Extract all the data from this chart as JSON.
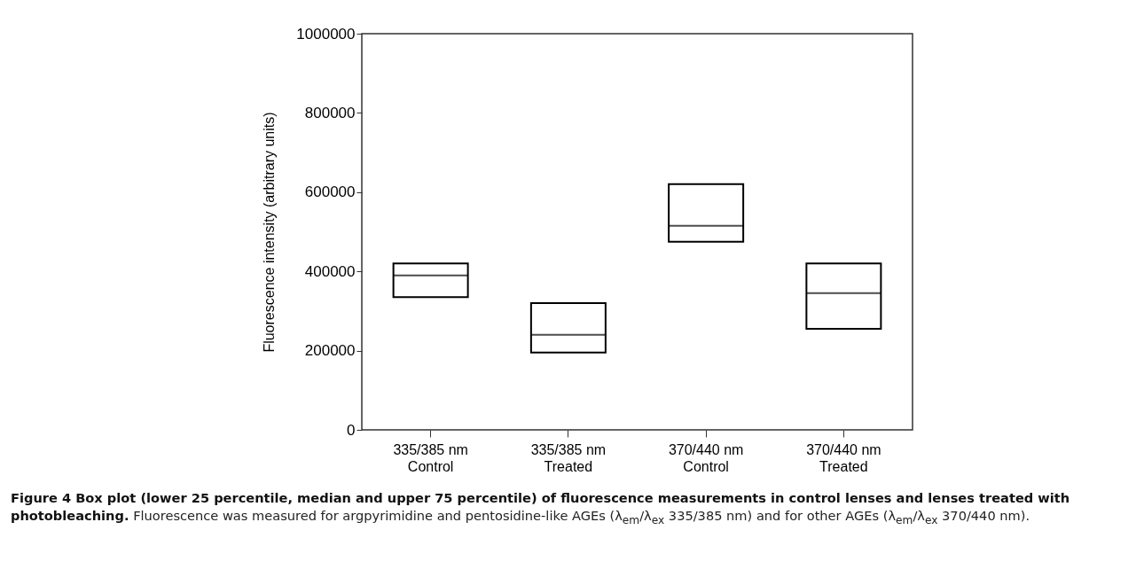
{
  "chart_data": {
    "type": "box",
    "title": "Figure 4 Box plot (lower 25 percentile, median and upper 75 percentile) of fluorescence measurements in control lenses and lenses treated with photobleaching.",
    "annotations": [
      "Fluorescence was measured for argpyrimidine and pentosidine-like AGEs (λ$_{em}$/λ$_{ex}$ 335/385 nm) and for other AGEs (λ$_{em}$/λ$_{ex}$ 370/440 nm)."
    ],
    "ylabel": "Fluorescence intensity (arbitrary units)",
    "categories": [
      "335/385 nm\nControl",
      "335/385 nm\nTreated",
      "370/440 nm\nControl",
      "370/440 nm\nTreated"
    ],
    "boxes": [
      {
        "low": 335000,
        "q1": 335000,
        "median": 390000,
        "q3": 420000,
        "high": 420000
      },
      {
        "low": 195000,
        "q1": 195000,
        "median": 240000,
        "q3": 320000,
        "high": 320000
      },
      {
        "low": 475000,
        "q1": 475000,
        "median": 515000,
        "q3": 620000,
        "high": 620000
      },
      {
        "low": 255000,
        "q1": 255000,
        "median": 345000,
        "q3": 420000,
        "high": 420000
      }
    ],
    "color": "#000000",
    "ylim": [
      0,
      1000000
    ],
    "yticks": [
      0,
      200000,
      400000,
      600000,
      800000,
      1000000
    ],
    "grid": false
  }
}
